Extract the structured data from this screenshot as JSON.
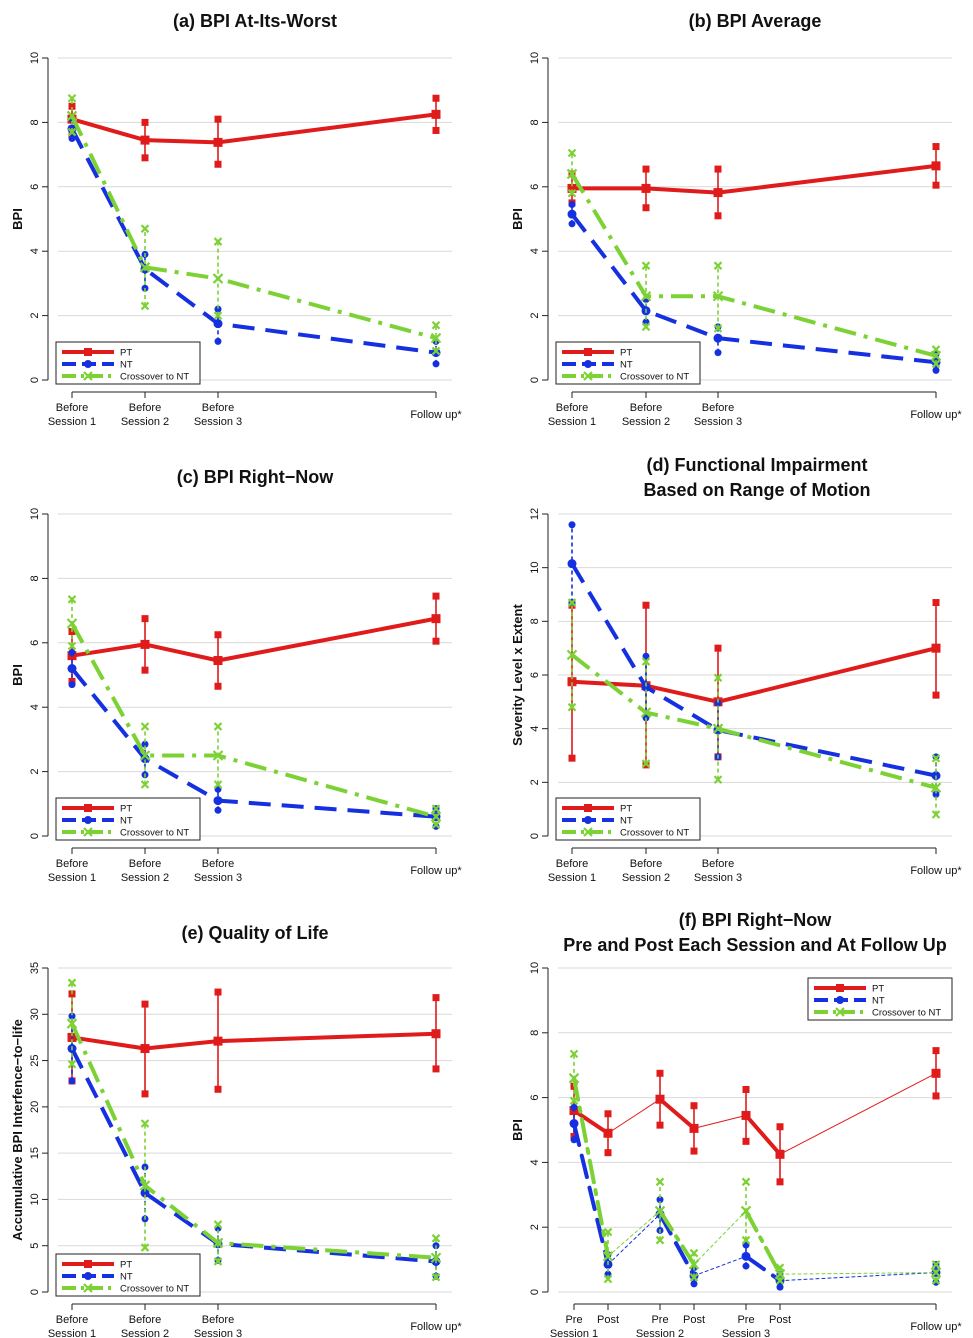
{
  "figure": {
    "legend": [
      "PT",
      "NT",
      "Crossover to NT"
    ],
    "colors": {
      "PT": "#e01b1b",
      "NT": "#1530e0",
      "Crossover to NT": "#7cd234"
    }
  },
  "chart_data": [
    {
      "type": "line",
      "title": [
        "(a) BPI At-Its-Worst"
      ],
      "ylabel": "BPI",
      "categories": [
        "Before Session 1",
        "Before Session 2",
        "Before Session 3",
        "Follow up*"
      ],
      "xlabels": [
        [
          "Before",
          "Session 1"
        ],
        [
          "Before",
          "Session 2"
        ],
        [
          "Before",
          "Session 3"
        ],
        [
          "Follow up*"
        ]
      ],
      "ylim": [
        0,
        10
      ],
      "yticks": [
        0,
        2,
        4,
        6,
        8,
        10
      ],
      "grid": true,
      "legend_position": "bottom-left",
      "series": [
        {
          "name": "PT",
          "values": [
            8.1,
            7.45,
            7.38,
            8.25
          ],
          "low": [
            7.6,
            6.9,
            6.7,
            7.75
          ],
          "high": [
            8.5,
            8.0,
            8.1,
            8.75
          ]
        },
        {
          "name": "NT",
          "values": [
            7.8,
            3.45,
            1.75,
            0.85
          ],
          "low": [
            7.5,
            2.85,
            1.2,
            0.5
          ],
          "high": [
            8.1,
            3.9,
            2.2,
            1.2
          ]
        },
        {
          "name": "Crossover to NT",
          "values": [
            8.2,
            3.5,
            3.15,
            1.3
          ],
          "low": [
            7.7,
            2.3,
            2.0,
            0.9
          ],
          "high": [
            8.75,
            4.7,
            4.3,
            1.7
          ]
        }
      ]
    },
    {
      "type": "line",
      "title": [
        "(b) BPI Average"
      ],
      "ylabel": "BPI",
      "categories": [
        "Before Session 1",
        "Before Session 2",
        "Before Session 3",
        "Follow up*"
      ],
      "xlabels": [
        [
          "Before",
          "Session 1"
        ],
        [
          "Before",
          "Session 2"
        ],
        [
          "Before",
          "Session 3"
        ],
        [
          "Follow up*"
        ]
      ],
      "ylim": [
        0,
        10
      ],
      "yticks": [
        0,
        2,
        4,
        6,
        8,
        10
      ],
      "grid": true,
      "legend_position": "bottom-left",
      "series": [
        {
          "name": "PT",
          "values": [
            5.95,
            5.95,
            5.82,
            6.65
          ],
          "low": [
            5.5,
            5.35,
            5.1,
            6.05
          ],
          "high": [
            6.4,
            6.55,
            6.55,
            7.25
          ]
        },
        {
          "name": "NT",
          "values": [
            5.15,
            2.15,
            1.3,
            0.55
          ],
          "low": [
            4.85,
            1.8,
            0.85,
            0.3
          ],
          "high": [
            5.45,
            2.5,
            1.65,
            0.8
          ]
        },
        {
          "name": "Crossover to NT",
          "values": [
            6.4,
            2.6,
            2.6,
            0.75
          ],
          "low": [
            5.8,
            1.65,
            1.6,
            0.5
          ],
          "high": [
            7.05,
            3.55,
            3.55,
            0.95
          ]
        }
      ]
    },
    {
      "type": "line",
      "title": [
        "(c) BPI Right−Now"
      ],
      "ylabel": "BPI",
      "categories": [
        "Before Session 1",
        "Before Session 2",
        "Before Session 3",
        "Follow up*"
      ],
      "xlabels": [
        [
          "Before",
          "Session 1"
        ],
        [
          "Before",
          "Session 2"
        ],
        [
          "Before",
          "Session 3"
        ],
        [
          "Follow up*"
        ]
      ],
      "ylim": [
        0,
        10
      ],
      "yticks": [
        0,
        2,
        4,
        6,
        8,
        10
      ],
      "grid": true,
      "legend_position": "bottom-left",
      "series": [
        {
          "name": "PT",
          "values": [
            5.6,
            5.95,
            5.45,
            6.75
          ],
          "low": [
            4.8,
            5.15,
            4.65,
            6.05
          ],
          "high": [
            6.35,
            6.75,
            6.25,
            7.45
          ]
        },
        {
          "name": "NT",
          "values": [
            5.2,
            2.4,
            1.1,
            0.6
          ],
          "low": [
            4.7,
            1.9,
            0.8,
            0.3
          ],
          "high": [
            5.7,
            2.85,
            1.45,
            0.85
          ]
        },
        {
          "name": "Crossover to NT",
          "values": [
            6.6,
            2.5,
            2.5,
            0.6
          ],
          "low": [
            5.9,
            1.6,
            1.6,
            0.35
          ],
          "high": [
            7.35,
            3.4,
            3.4,
            0.85
          ]
        }
      ]
    },
    {
      "type": "line",
      "title": [
        "(d) Functional Impairment",
        "Based on Range of Motion"
      ],
      "ylabel": "Severity Level x Extent",
      "categories": [
        "Before Session 1",
        "Before Session 2",
        "Before Session 3",
        "Follow up*"
      ],
      "xlabels": [
        [
          "Before",
          "Session 1"
        ],
        [
          "Before",
          "Session 2"
        ],
        [
          "Before",
          "Session 3"
        ],
        [
          "Follow up*"
        ]
      ],
      "ylim": [
        0,
        12
      ],
      "yticks": [
        0,
        2,
        4,
        6,
        8,
        10,
        12
      ],
      "grid": true,
      "legend_position": "bottom-left",
      "series": [
        {
          "name": "PT",
          "values": [
            5.75,
            5.6,
            5.0,
            7.0
          ],
          "low": [
            2.9,
            2.65,
            2.95,
            5.25
          ],
          "high": [
            8.6,
            8.6,
            7.0,
            8.7
          ]
        },
        {
          "name": "NT",
          "values": [
            10.15,
            5.55,
            3.95,
            2.25
          ],
          "low": [
            8.7,
            4.4,
            2.95,
            1.55
          ],
          "high": [
            11.6,
            6.7,
            4.95,
            2.95
          ]
        },
        {
          "name": "Crossover to NT",
          "values": [
            6.75,
            4.6,
            4.0,
            1.8
          ],
          "low": [
            4.8,
            2.7,
            2.1,
            0.8
          ],
          "high": [
            8.7,
            6.5,
            5.9,
            2.9
          ]
        }
      ]
    },
    {
      "type": "line",
      "title": [
        "(e) Quality of Life"
      ],
      "ylabel": "Accumulative BPI Interfence−to−life",
      "categories": [
        "Before Session 1",
        "Before Session 2",
        "Before Session 3",
        "Follow up*"
      ],
      "xlabels": [
        [
          "Before",
          "Session 1"
        ],
        [
          "Before",
          "Session 2"
        ],
        [
          "Before",
          "Session 3"
        ],
        [
          "Follow up*"
        ]
      ],
      "ylim": [
        0,
        35
      ],
      "yticks": [
        0,
        5,
        10,
        15,
        20,
        25,
        30,
        35
      ],
      "grid": true,
      "legend_position": "bottom-left",
      "series": [
        {
          "name": "PT",
          "values": [
            27.5,
            26.3,
            27.1,
            27.9
          ],
          "low": [
            22.8,
            21.4,
            21.9,
            24.1
          ],
          "high": [
            32.2,
            31.1,
            32.4,
            31.8
          ]
        },
        {
          "name": "NT",
          "values": [
            26.3,
            10.7,
            5.2,
            3.3
          ],
          "low": [
            22.8,
            7.9,
            3.4,
            1.7
          ],
          "high": [
            29.8,
            13.5,
            6.9,
            5.0
          ]
        },
        {
          "name": "Crossover to NT",
          "values": [
            29.0,
            11.5,
            5.3,
            3.7
          ],
          "low": [
            24.6,
            4.8,
            3.3,
            1.6
          ],
          "high": [
            33.4,
            18.2,
            7.3,
            5.8
          ]
        }
      ]
    },
    {
      "type": "line",
      "title": [
        "(f) BPI Right−Now",
        "Pre and Post Each Session and At Follow Up"
      ],
      "ylabel": "BPI",
      "categories": [
        "Pre Session 1",
        "Post Session 1",
        "Pre Session 2",
        "Post Session 2",
        "Pre Session 3",
        "Post Session 3",
        "Follow up*"
      ],
      "xlabels": [
        [
          "Pre",
          "Session 1"
        ],
        [
          "Post"
        ],
        [
          "Pre",
          "Session 2"
        ],
        [
          "Post"
        ],
        [
          "Pre",
          "Session 3"
        ],
        [
          "Post"
        ],
        [
          "Follow up*"
        ]
      ],
      "ylim": [
        0,
        10
      ],
      "yticks": [
        0,
        2,
        4,
        6,
        8,
        10
      ],
      "grid": true,
      "legend_position": "top-right",
      "series": [
        {
          "name": "PT",
          "values": [
            5.6,
            4.9,
            5.95,
            5.05,
            5.45,
            4.25,
            6.75
          ],
          "low": [
            4.8,
            4.3,
            5.15,
            4.35,
            4.65,
            3.4,
            6.05
          ],
          "high": [
            6.35,
            5.5,
            6.75,
            5.75,
            6.25,
            5.1,
            7.45
          ]
        },
        {
          "name": "NT",
          "values": [
            5.2,
            0.85,
            2.4,
            0.5,
            1.1,
            0.35,
            0.6
          ],
          "low": [
            4.7,
            0.55,
            1.9,
            0.25,
            0.8,
            0.15,
            0.3
          ],
          "high": [
            5.7,
            1.15,
            2.85,
            0.75,
            1.45,
            0.55,
            0.85
          ]
        },
        {
          "name": "Crossover to NT",
          "values": [
            6.6,
            1.1,
            2.5,
            0.85,
            2.5,
            0.55,
            0.6
          ],
          "low": [
            5.9,
            0.4,
            1.6,
            0.45,
            1.6,
            0.35,
            0.35
          ],
          "high": [
            7.35,
            1.85,
            3.4,
            1.2,
            3.4,
            0.75,
            0.85
          ]
        }
      ]
    }
  ]
}
